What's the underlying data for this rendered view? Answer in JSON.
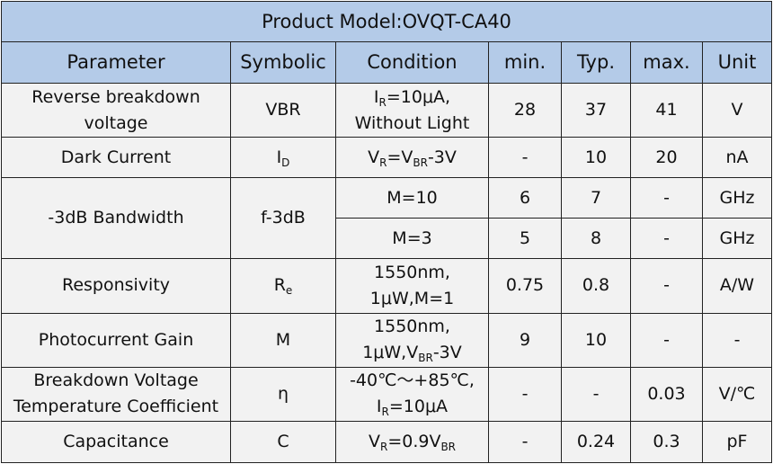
{
  "title": "Product Model:OVQT-CA40",
  "headers": {
    "parameter": "Parameter",
    "symbolic": "Symbolic",
    "condition": "Condition",
    "min": "min.",
    "typ": "Typ.",
    "max": "max.",
    "unit": "Unit"
  },
  "rows": {
    "vbr": {
      "param_l1": "Reverse breakdown",
      "param_l2": "voltage",
      "sym": "VBR",
      "cond_l1_main": "I",
      "cond_l1_sub": "R",
      "cond_l1_rest": "=10μA,",
      "cond_l2": "Without Light",
      "min": "28",
      "typ": "37",
      "max": "41",
      "unit": "V"
    },
    "dark": {
      "param": "Dark Current",
      "sym_main": "I",
      "sym_sub": "D",
      "cond_a": "V",
      "cond_a_sub": "R",
      "cond_b": "=V",
      "cond_b_sub": "BR",
      "cond_c": "-3V",
      "min": "-",
      "typ": "10",
      "max": "20",
      "unit": "nA"
    },
    "bw": {
      "param": "-3dB Bandwidth",
      "sym": "f-3dB",
      "sub1": {
        "cond": "M=10",
        "min": "6",
        "typ": "7",
        "max": "-",
        "unit": "GHz"
      },
      "sub2": {
        "cond": "M=3",
        "min": "5",
        "typ": "8",
        "max": "-",
        "unit": "GHz"
      }
    },
    "resp": {
      "param": "Responsivity",
      "sym_main": "R",
      "sym_sub": "e",
      "cond_l1": "1550nm,",
      "cond_l2": "1μW,M=1",
      "min": "0.75",
      "typ": "0.8",
      "max": "-",
      "unit": "A/W"
    },
    "gain": {
      "param": "Photocurrent Gain",
      "sym": "M",
      "cond_l1": "1550nm,",
      "cond_l2_a": "1μW,V",
      "cond_l2_sub": "BR",
      "cond_l2_b": "-3V",
      "min": "9",
      "typ": "10",
      "max": "-",
      "unit": "-"
    },
    "tempco": {
      "param_l1": "Breakdown Voltage",
      "param_l2": "Temperature Coefficient",
      "sym": "η",
      "cond_l1": "-40℃～+85℃,",
      "cond_l2_main": "I",
      "cond_l2_sub": "R",
      "cond_l2_rest": "=10μA",
      "min": "-",
      "typ": "-",
      "max": "0.03",
      "unit": "V/℃"
    },
    "cap": {
      "param": "Capacitance",
      "sym": "C",
      "cond_a": "V",
      "cond_a_sub": "R",
      "cond_b": "=0.9V",
      "cond_b_sub": "BR",
      "min": "-",
      "typ": "0.24",
      "max": "0.3",
      "unit": "pF"
    }
  },
  "colors": {
    "header_bg": "#b4cbe8",
    "cell_bg": "#f2f2f2",
    "border": "#222222"
  }
}
